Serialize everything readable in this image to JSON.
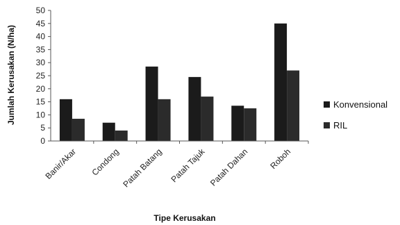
{
  "chart_data": {
    "type": "bar",
    "title": "",
    "xlabel": "Tipe Kerusakan",
    "ylabel": "Jumlah Kerusakan (N/ha)",
    "ylim": [
      0,
      50
    ],
    "yticks": [
      0,
      5,
      10,
      15,
      20,
      25,
      30,
      35,
      40,
      45,
      50
    ],
    "grid": false,
    "legend_position": "right",
    "categories": [
      "Banir/Akar",
      "Condong",
      "Patah Batang",
      "Patah Tajuk",
      "Patah Dahan",
      "Roboh"
    ],
    "series": [
      {
        "name": "Konvensional",
        "values": [
          16,
          7,
          28.5,
          24.5,
          13.5,
          45
        ],
        "color": "#1b1b1b"
      },
      {
        "name": "RIL",
        "values": [
          8.5,
          4,
          16,
          17,
          12.5,
          27
        ],
        "color": "#2b2b2b"
      }
    ]
  }
}
